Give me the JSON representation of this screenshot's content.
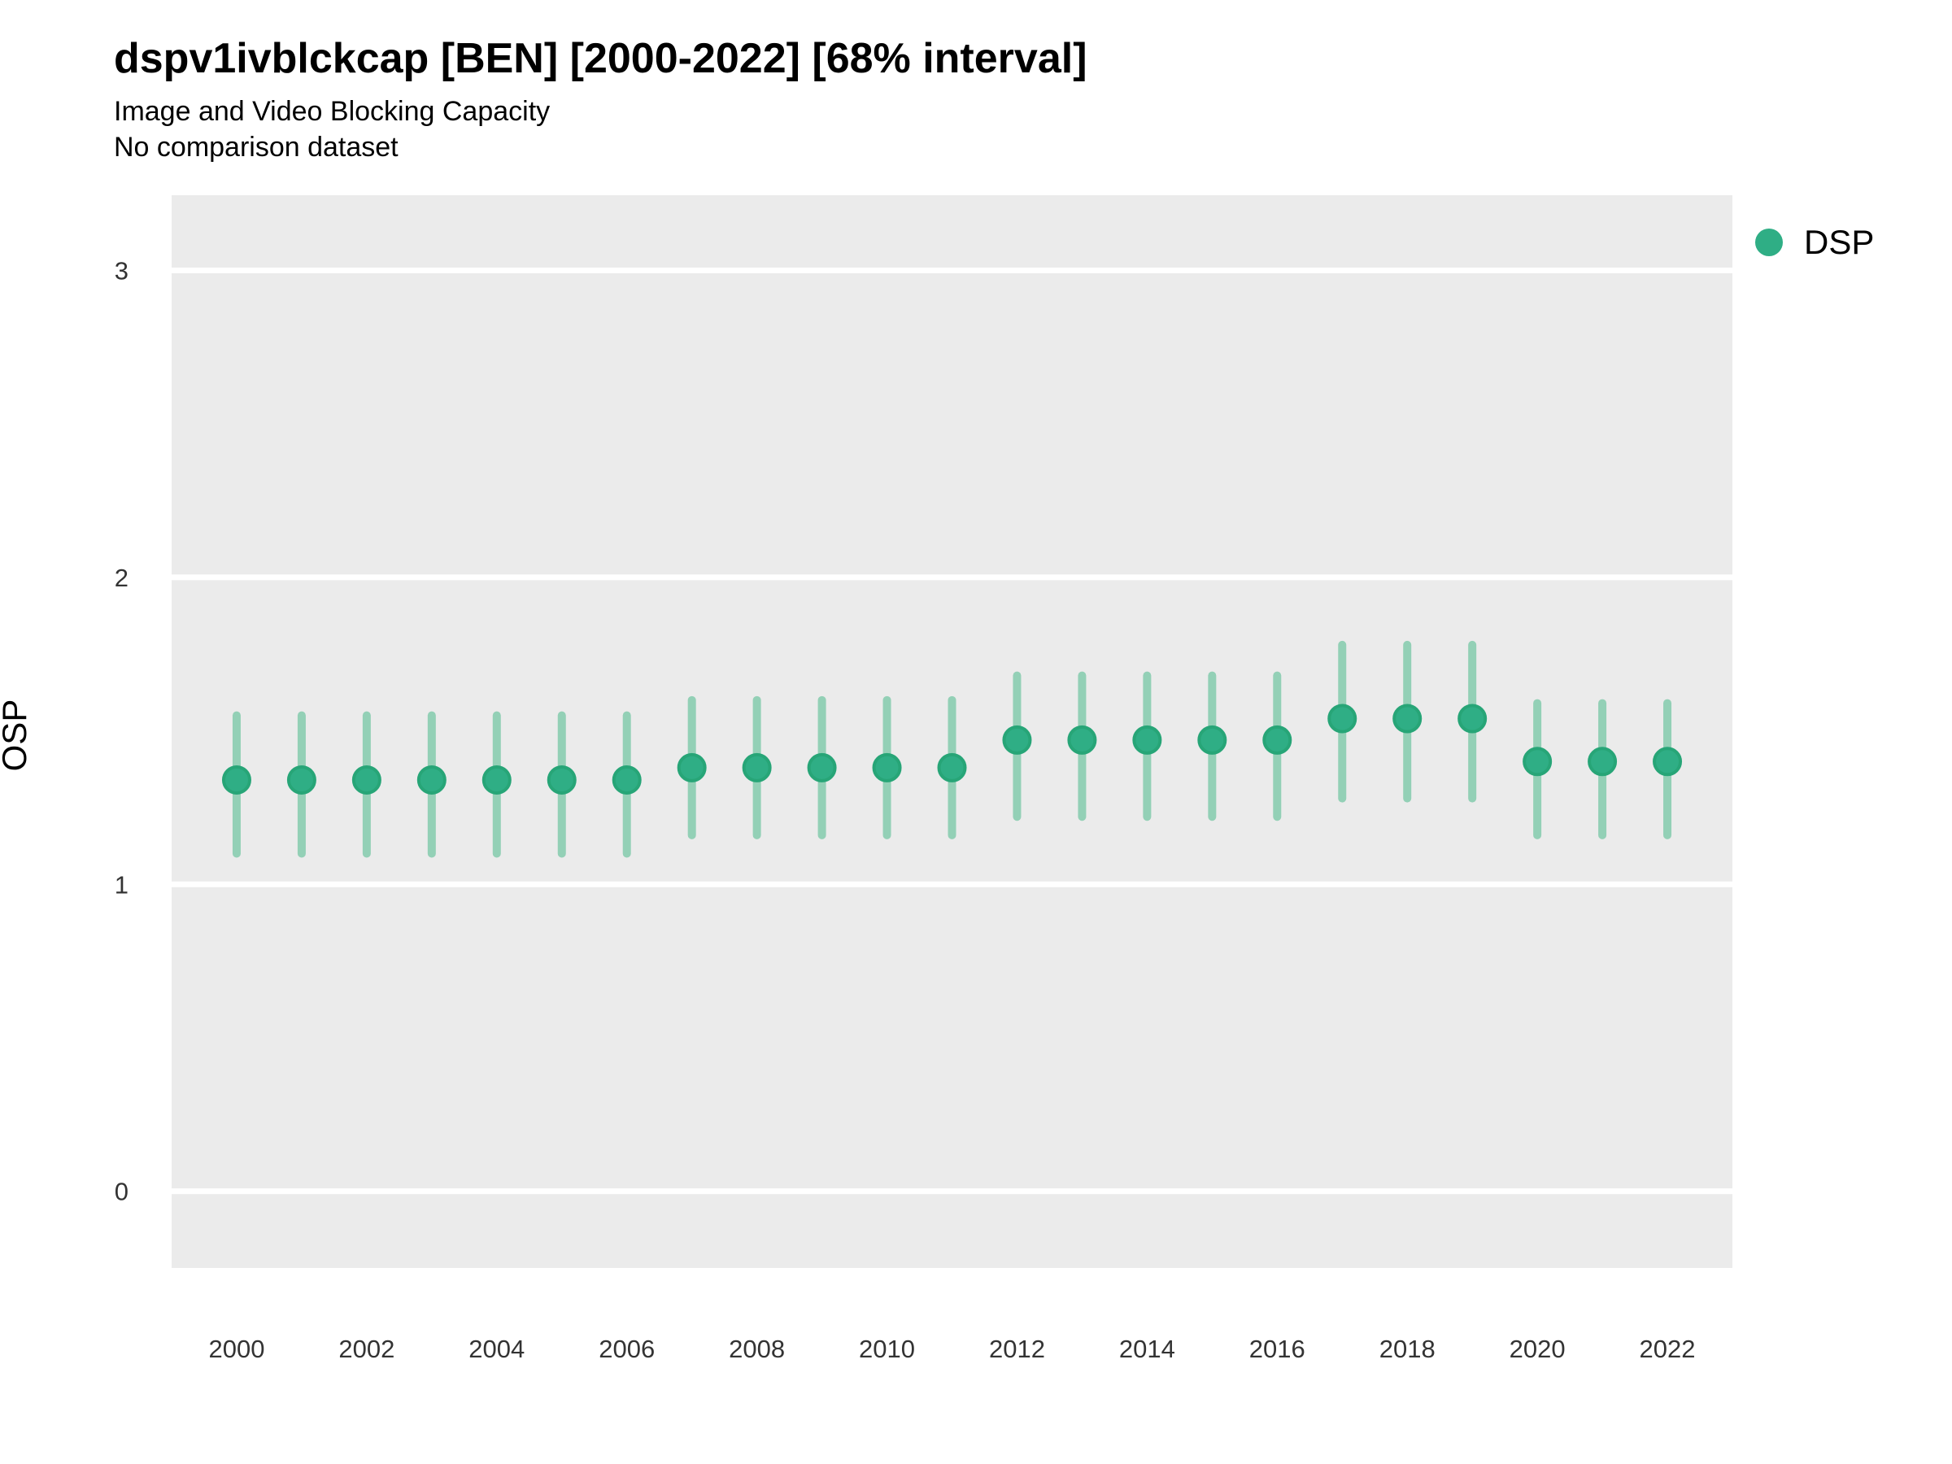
{
  "header": {
    "title": "dspv1ivblckcap [BEN] [2000-2022] [68% interval]",
    "subtitle1": "Image and Video Blocking Capacity",
    "subtitle2": "No comparison dataset"
  },
  "legend": {
    "position": "right",
    "items": [
      {
        "label": "DSP",
        "color": "#2fae85"
      }
    ]
  },
  "chart_data": {
    "type": "pointrange",
    "title": "dspv1ivblckcap [BEN] [2000-2022] [68% interval]",
    "subtitle": "Image and Video Blocking Capacity",
    "caption": "No comparison dataset",
    "xlabel": "",
    "ylabel": "OSP",
    "interval_label": "68% interval",
    "xlim": [
      1999,
      2023
    ],
    "ylim": [
      -0.25,
      3.245
    ],
    "x_ticks": [
      2000,
      2002,
      2004,
      2006,
      2008,
      2010,
      2012,
      2014,
      2016,
      2018,
      2020,
      2022
    ],
    "y_ticks": [
      0,
      1,
      2,
      3
    ],
    "grid": "major-horizontal-only",
    "panel_bg": "#ebebeb",
    "grid_color": "#ffffff",
    "tick_label_color": "#333333",
    "series": [
      {
        "name": "DSP",
        "point_color": "#2fae85",
        "point_stroke": "#27a577",
        "interval_color": "#93d0b6",
        "points": [
          {
            "year": 2000,
            "mid": 1.34,
            "lo": 1.1,
            "hi": 1.55
          },
          {
            "year": 2001,
            "mid": 1.34,
            "lo": 1.1,
            "hi": 1.55
          },
          {
            "year": 2002,
            "mid": 1.34,
            "lo": 1.1,
            "hi": 1.55
          },
          {
            "year": 2003,
            "mid": 1.34,
            "lo": 1.1,
            "hi": 1.55
          },
          {
            "year": 2004,
            "mid": 1.34,
            "lo": 1.1,
            "hi": 1.55
          },
          {
            "year": 2005,
            "mid": 1.34,
            "lo": 1.1,
            "hi": 1.55
          },
          {
            "year": 2006,
            "mid": 1.34,
            "lo": 1.1,
            "hi": 1.55
          },
          {
            "year": 2007,
            "mid": 1.38,
            "lo": 1.16,
            "hi": 1.6
          },
          {
            "year": 2008,
            "mid": 1.38,
            "lo": 1.16,
            "hi": 1.6
          },
          {
            "year": 2009,
            "mid": 1.38,
            "lo": 1.16,
            "hi": 1.6
          },
          {
            "year": 2010,
            "mid": 1.38,
            "lo": 1.16,
            "hi": 1.6
          },
          {
            "year": 2011,
            "mid": 1.38,
            "lo": 1.16,
            "hi": 1.6
          },
          {
            "year": 2012,
            "mid": 1.47,
            "lo": 1.22,
            "hi": 1.68
          },
          {
            "year": 2013,
            "mid": 1.47,
            "lo": 1.22,
            "hi": 1.68
          },
          {
            "year": 2014,
            "mid": 1.47,
            "lo": 1.22,
            "hi": 1.68
          },
          {
            "year": 2015,
            "mid": 1.47,
            "lo": 1.22,
            "hi": 1.68
          },
          {
            "year": 2016,
            "mid": 1.47,
            "lo": 1.22,
            "hi": 1.68
          },
          {
            "year": 2017,
            "mid": 1.54,
            "lo": 1.28,
            "hi": 1.78
          },
          {
            "year": 2018,
            "mid": 1.54,
            "lo": 1.28,
            "hi": 1.78
          },
          {
            "year": 2019,
            "mid": 1.54,
            "lo": 1.28,
            "hi": 1.78
          },
          {
            "year": 2020,
            "mid": 1.4,
            "lo": 1.16,
            "hi": 1.59
          },
          {
            "year": 2021,
            "mid": 1.4,
            "lo": 1.16,
            "hi": 1.59
          },
          {
            "year": 2022,
            "mid": 1.4,
            "lo": 1.16,
            "hi": 1.59
          }
        ]
      }
    ]
  }
}
